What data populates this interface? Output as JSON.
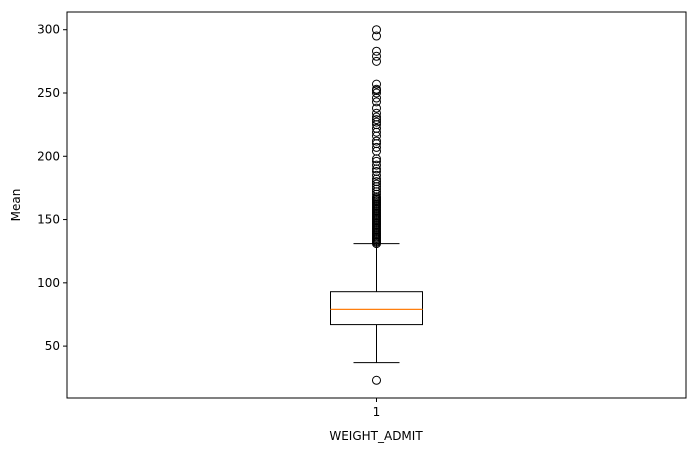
{
  "chart_data": {
    "type": "box",
    "xlabel": "WEIGHT_ADMIT",
    "ylabel": "Mean",
    "categories": [
      "1"
    ],
    "ylim": [
      9,
      314
    ],
    "yticks": [
      50,
      100,
      150,
      200,
      250,
      300
    ],
    "grid": false,
    "boxes": [
      {
        "label": "1",
        "whisker_low": 37,
        "q1": 67,
        "median": 79,
        "q3": 93,
        "whisker_high": 131,
        "outliers_high": [
          131,
          132,
          133,
          134,
          135,
          136,
          137,
          138,
          139,
          140,
          141,
          142,
          143,
          144,
          145,
          146,
          147,
          148,
          149,
          150,
          151,
          152,
          153,
          154,
          155,
          156,
          157,
          158,
          159,
          160,
          161,
          162,
          163,
          164,
          165,
          166,
          167,
          168,
          170,
          172,
          174,
          176,
          178,
          180,
          182,
          185,
          188,
          190,
          193,
          196,
          198,
          204,
          207,
          210,
          212,
          216,
          219,
          222,
          225,
          227,
          229,
          231,
          234,
          238,
          243,
          246,
          250,
          252,
          253,
          257,
          275,
          279,
          283,
          295,
          300
        ],
        "outliers_low": [
          23
        ]
      }
    ],
    "colors": {
      "box": "#000000",
      "median": "#ff7f0e",
      "flier": "#000000"
    }
  }
}
